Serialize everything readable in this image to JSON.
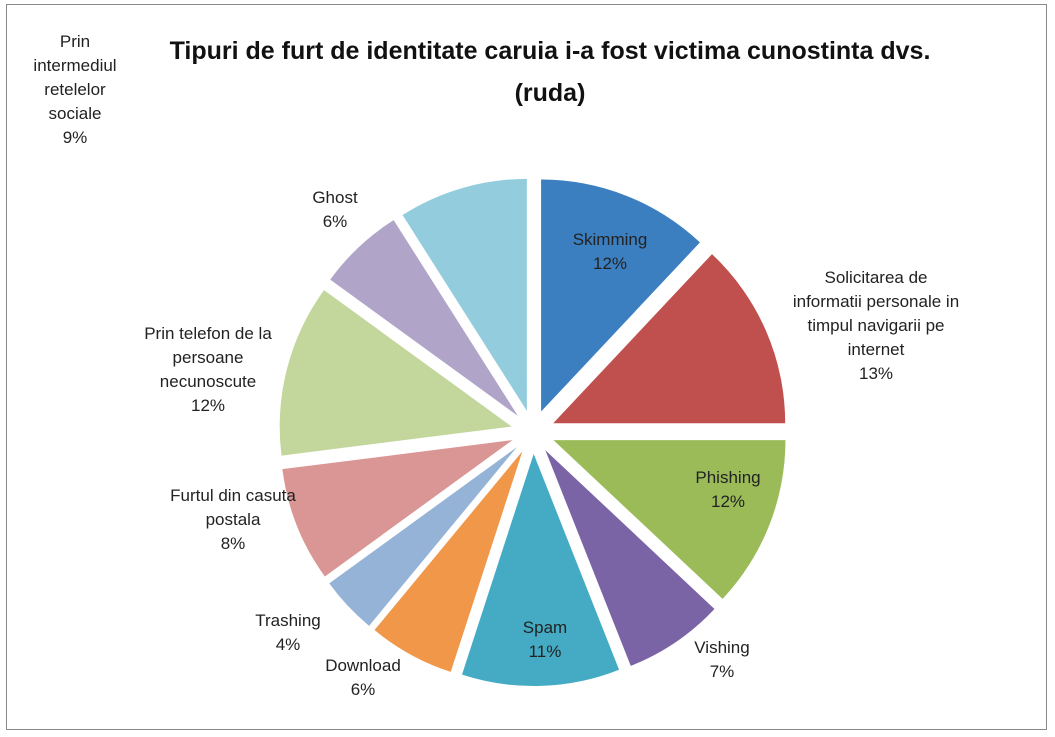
{
  "chart_data": {
    "type": "pie",
    "title": "Tipuri de furt de identitate caruia i-a fost victima cunostinta dvs. (ruda)",
    "categories": [
      "Skimming",
      "Solicitarea de informatii personale in timpul navigarii pe internet",
      "Phishing",
      "Vishing",
      "Spam",
      "Download",
      "Trashing",
      "Furtul din casuta postala",
      "Prin telefon de la persoane necunoscute",
      "Ghost",
      "Prin intermediul retelelor sociale"
    ],
    "values": [
      12,
      13,
      12,
      7,
      11,
      6,
      4,
      8,
      12,
      6,
      9
    ],
    "value_labels": [
      "12%",
      "13%",
      "12%",
      "7%",
      "11%",
      "6%",
      "4%",
      "8%",
      "12%",
      "6%",
      "9%"
    ],
    "colors": [
      "#3b7fc0",
      "#c0504d",
      "#9bbb59",
      "#7a64a6",
      "#45abc4",
      "#f0974a",
      "#95b3d7",
      "#d99694",
      "#c3d69b",
      "#b0a5c9",
      "#93cddd"
    ]
  }
}
